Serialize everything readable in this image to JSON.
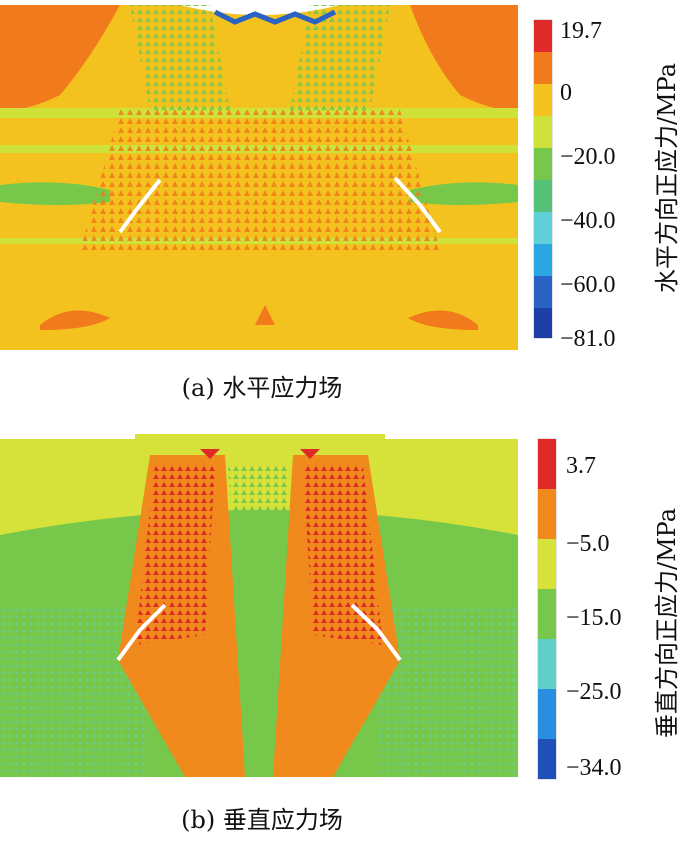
{
  "panels": [
    {
      "id": "a",
      "caption": "(a)  水平应力场",
      "colorbar_title": "水平方向正应力/MPa",
      "colorbar_ticks": [
        "19.7",
        "0",
        "−20.0",
        "−40.0",
        "−60.0",
        "−81.0"
      ],
      "colors": {
        "bands": [
          "#e02a2a",
          "#f07a1c",
          "#f4c21f",
          "#cfe23a",
          "#77c84a",
          "#55c27a",
          "#5fd0d8",
          "#2aa6e2",
          "#2a63c4",
          "#1f3fa8"
        ]
      }
    },
    {
      "id": "b",
      "caption": "(b)  垂直应力场",
      "colorbar_title": "垂直方向正应力/MPa",
      "colorbar_ticks": [
        "3.7",
        "−5.0",
        "−15.0",
        "−25.0",
        "−34.0"
      ],
      "colors": {
        "bands": [
          "#e02a2a",
          "#f08a1c",
          "#d6e23a",
          "#77c84a",
          "#5fcfc8",
          "#2a8ee0",
          "#1f4fb8"
        ]
      }
    }
  ]
}
